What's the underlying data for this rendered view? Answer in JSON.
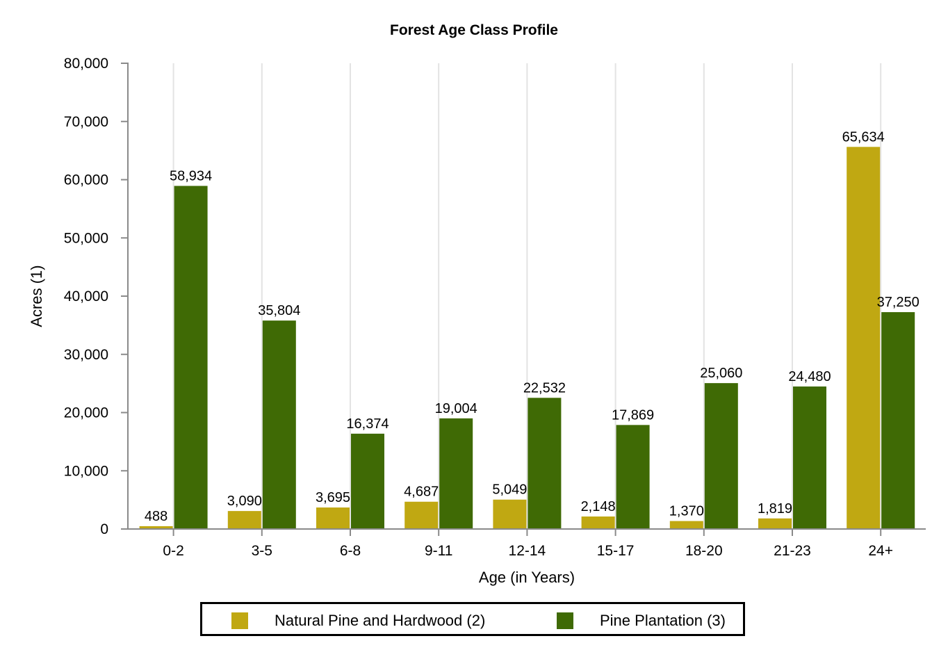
{
  "chart_data": {
    "type": "bar",
    "title": "Forest Age Class Profile",
    "xlabel": "Age (in Years)",
    "ylabel": "Acres (1)",
    "ylim": [
      0,
      80000
    ],
    "yticks": [
      0,
      10000,
      20000,
      30000,
      40000,
      50000,
      60000,
      70000,
      80000
    ],
    "ytick_labels": [
      "0",
      "10,000",
      "20,000",
      "30,000",
      "40,000",
      "50,000",
      "60,000",
      "70,000",
      "80,000"
    ],
    "grid": "vertical",
    "legend_position": "bottom",
    "categories": [
      "0-2",
      "3-5",
      "6-8",
      "9-11",
      "12-14",
      "15-17",
      "18-20",
      "21-23",
      "24+"
    ],
    "series": [
      {
        "name": "Natural Pine and Hardwood (2)",
        "color": "#C0A812",
        "values": [
          488,
          3090,
          3695,
          4687,
          5049,
          2148,
          1370,
          1819,
          65634
        ],
        "labels": [
          "488",
          "3,090",
          "3,695",
          "4,687",
          "5,049",
          "2,148",
          "1,370",
          "1,819",
          "65,634"
        ]
      },
      {
        "name": "Pine Plantation (3)",
        "color": "#3F6A05",
        "values": [
          58934,
          35804,
          16374,
          19004,
          22532,
          17869,
          25060,
          24480,
          37250
        ],
        "labels": [
          "58,934",
          "35,804",
          "16,374",
          "19,004",
          "22,532",
          "17,869",
          "25,060",
          "24,480",
          "37,250"
        ]
      }
    ]
  }
}
